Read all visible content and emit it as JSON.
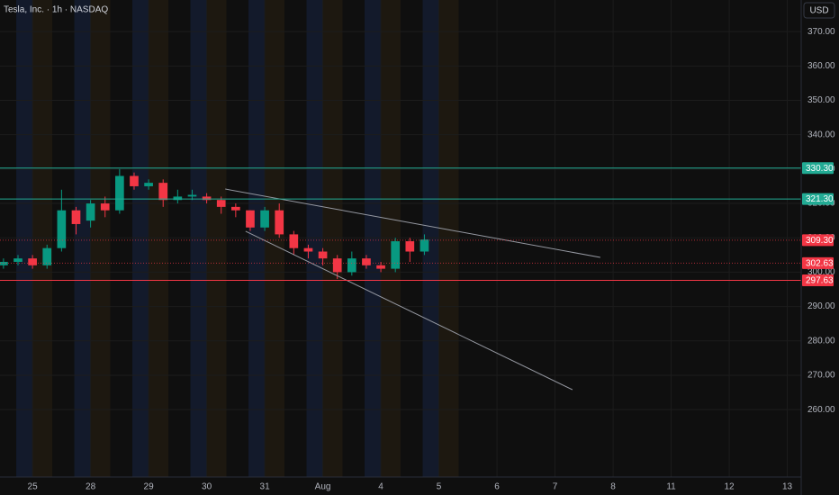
{
  "chart_data": {
    "type": "candlestick",
    "title": "Tesla, Inc. · 1h · NASDAQ",
    "currency": "USD",
    "up_color": "#089981",
    "down_color": "#f23645",
    "grid": true,
    "xlim": [
      -0.56,
      13.24
    ],
    "ylim": [
      240.4,
      379.2
    ],
    "xticks": [
      {
        "value": 0,
        "label": "25"
      },
      {
        "value": 1,
        "label": "28"
      },
      {
        "value": 2,
        "label": "29"
      },
      {
        "value": 3,
        "label": "30"
      },
      {
        "value": 4,
        "label": "31"
      },
      {
        "value": 5,
        "label": "Aug"
      },
      {
        "value": 6,
        "label": "4"
      },
      {
        "value": 7,
        "label": "5"
      },
      {
        "value": 8,
        "label": "6"
      },
      {
        "value": 9,
        "label": "7"
      },
      {
        "value": 10,
        "label": "8"
      },
      {
        "value": 11,
        "label": "11"
      },
      {
        "value": 12,
        "label": "12"
      },
      {
        "value": 13,
        "label": "13"
      }
    ],
    "yticks": [
      {
        "value": 260,
        "label": "260.00"
      },
      {
        "value": 270,
        "label": "270.00"
      },
      {
        "value": 280,
        "label": "280.00"
      },
      {
        "value": 290,
        "label": "290.00"
      },
      {
        "value": 300,
        "label": "300.00"
      },
      {
        "value": 310,
        "label": "310.00"
      },
      {
        "value": 320,
        "label": "320.00"
      },
      {
        "value": 330,
        "label": "330.00"
      },
      {
        "value": 340,
        "label": "340.00"
      },
      {
        "value": 350,
        "label": "350.00"
      },
      {
        "value": 360,
        "label": "360.00"
      },
      {
        "value": 370,
        "label": "370.00"
      }
    ],
    "x": [
      -0.5,
      -0.25,
      0,
      0.25,
      0.5,
      0.75,
      1,
      1.25,
      1.5,
      1.75,
      2,
      2.25,
      2.5,
      2.75,
      3,
      3.25,
      3.5,
      3.75,
      4,
      4.25,
      4.5,
      4.75,
      5,
      5.25,
      5.5,
      5.75,
      6,
      6.25,
      6.5,
      6.75
    ],
    "open": [
      302,
      303,
      304,
      302,
      307,
      318,
      315,
      320,
      318,
      328,
      325,
      326,
      321,
      322,
      322,
      321,
      319,
      318,
      313,
      318,
      311,
      307,
      306,
      304,
      300,
      304,
      302,
      301,
      309,
      306
    ],
    "high": [
      304,
      305,
      305,
      308,
      324,
      319,
      321,
      322,
      330,
      329,
      327,
      327,
      324,
      324,
      323,
      322,
      320,
      318,
      319,
      320,
      312,
      308,
      307,
      305,
      306,
      305,
      303,
      310,
      310,
      311
    ],
    "low": [
      301,
      302,
      301,
      301,
      306,
      311,
      313,
      316,
      317,
      324,
      324,
      319,
      320,
      321,
      320,
      317,
      316,
      312,
      312,
      310,
      305,
      304,
      302,
      298,
      299,
      301,
      300,
      300,
      303,
      305
    ],
    "close": [
      303,
      304,
      302,
      307,
      318,
      314,
      320,
      318,
      328,
      325,
      326,
      321,
      322,
      322.5,
      321,
      319,
      318,
      313,
      318,
      311,
      307,
      306,
      304,
      300,
      304,
      302,
      301,
      309,
      306,
      309.5
    ],
    "levels": [
      {
        "value": 330.3,
        "label": "330.30",
        "color": "#22ab94",
        "style": "solid"
      },
      {
        "value": 321.3,
        "label": "321.30",
        "color": "#22ab94",
        "style": "solid"
      },
      {
        "value": 309.3,
        "label": "309.30",
        "color": "#f23645",
        "style": "dotted"
      },
      {
        "value": 302.63,
        "label": "302.63",
        "color": "#f23645",
        "style": "dotted"
      },
      {
        "value": 297.63,
        "label": "297.63",
        "color": "#f23645",
        "style": "solid"
      }
    ],
    "trendlines": [
      {
        "x": [
          3.32,
          9.78
        ],
        "y": [
          324.2,
          304.3
        ],
        "color": "#9598a1"
      },
      {
        "x": [
          3.67,
          9.3
        ],
        "y": [
          311.9,
          265.8
        ],
        "color": "#9598a1"
      }
    ]
  }
}
